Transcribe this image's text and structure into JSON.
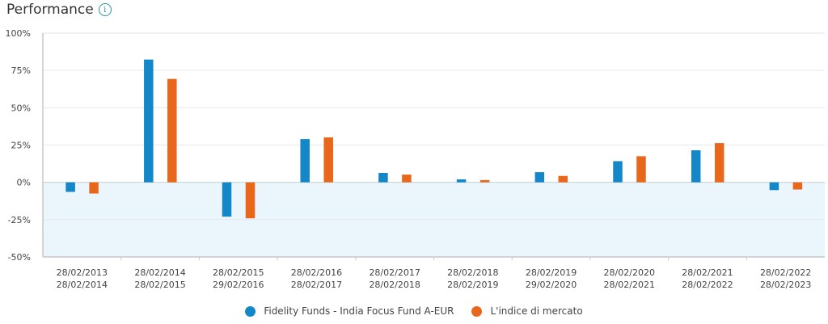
{
  "header": {
    "title": "Performance",
    "info_icon": "info-icon"
  },
  "colors": {
    "fund": "#1487c9",
    "index": "#e8671a",
    "negative_bg": "#eaf5fc"
  },
  "chart_data": {
    "type": "bar",
    "title": "Performance",
    "ylim": [
      -50,
      100
    ],
    "yticks": [
      100,
      75,
      50,
      25,
      0,
      -25,
      -50
    ],
    "ytick_labels": [
      "100%",
      "75%",
      "50%",
      "25%",
      "0%",
      "-25%",
      "-50%"
    ],
    "categories": [
      [
        "28/02/2013",
        "28/02/2014"
      ],
      [
        "28/02/2014",
        "28/02/2015"
      ],
      [
        "28/02/2015",
        "29/02/2016"
      ],
      [
        "28/02/2016",
        "28/02/2017"
      ],
      [
        "28/02/2017",
        "28/02/2018"
      ],
      [
        "28/02/2018",
        "28/02/2019"
      ],
      [
        "28/02/2019",
        "29/02/2020"
      ],
      [
        "28/02/2020",
        "28/02/2021"
      ],
      [
        "28/02/2021",
        "28/02/2022"
      ],
      [
        "28/02/2022",
        "28/02/2023"
      ]
    ],
    "series": [
      {
        "name": "Fidelity Funds - India Focus Fund A-EUR",
        "values": [
          -6.4,
          82.3,
          -23.0,
          29.0,
          6.3,
          2.0,
          6.8,
          14.2,
          21.5,
          -5.2
        ]
      },
      {
        "name": "L'indice di mercato",
        "values": [
          -7.5,
          69.3,
          -24.1,
          30.1,
          5.2,
          1.5,
          4.3,
          17.5,
          26.3,
          -4.8
        ]
      }
    ],
    "grid": true,
    "legend": "bottom"
  }
}
